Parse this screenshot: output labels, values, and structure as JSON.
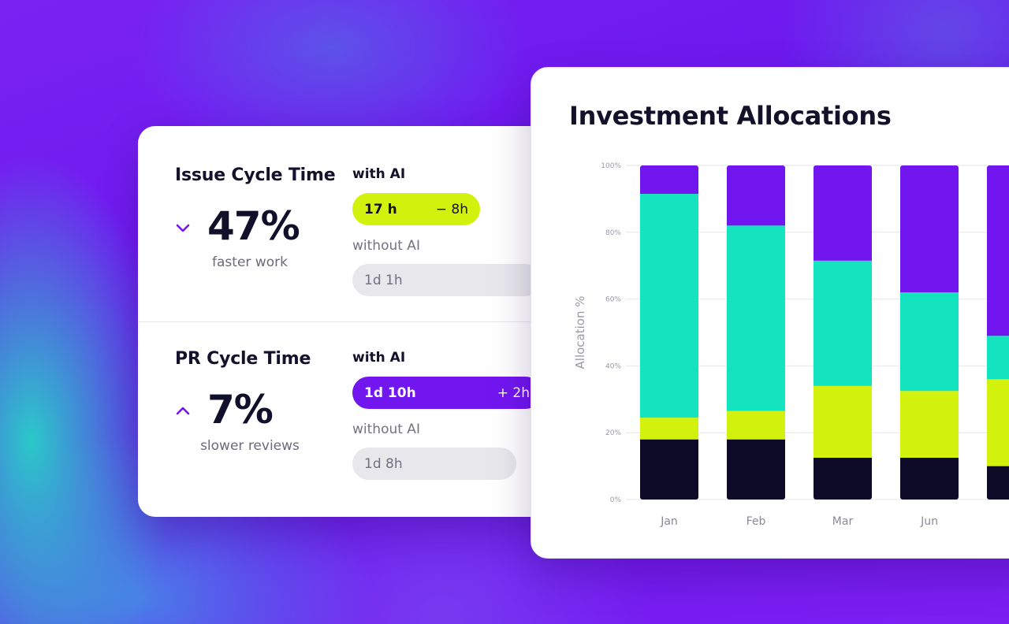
{
  "cycle_cards": [
    {
      "title": "Issue Cycle Time",
      "direction": "down",
      "percent": "47%",
      "caption": "faster work",
      "with_label": "with AI",
      "with_value": "17 h",
      "with_delta": "− 8h",
      "without_label": "without AI",
      "without_value": "1d 1h"
    },
    {
      "title": "PR Cycle Time",
      "direction": "up",
      "percent": "7%",
      "caption": "slower reviews",
      "with_label": "with AI",
      "with_value": "1d 10h",
      "with_delta": "+ 2h",
      "without_label": "without AI",
      "without_value": "1d 8h"
    }
  ],
  "colors": {
    "purple": "#7216f0",
    "teal": "#14e3c0",
    "lime": "#d2f20e",
    "navy": "#0e0b28",
    "arrow": "#7216f0"
  },
  "chart_data": {
    "type": "bar",
    "stacked": true,
    "title": "Investment Allocations",
    "xlabel": "",
    "ylabel": "Allocation %",
    "ylim": [
      0,
      100
    ],
    "y_ticks": [
      "0%",
      "20%",
      "40%",
      "60%",
      "80%",
      "100%"
    ],
    "grid": true,
    "categories": [
      "Jan",
      "Feb",
      "Mar",
      "Jun",
      ""
    ],
    "series": [
      {
        "color": "#0e0b28",
        "values": [
          18,
          18,
          12.5,
          12.5,
          10
        ]
      },
      {
        "color": "#d2f20e",
        "values": [
          6.5,
          8.5,
          21.5,
          20,
          26
        ]
      },
      {
        "color": "#14e3c0",
        "values": [
          67,
          55.5,
          37.5,
          29.5,
          13
        ]
      },
      {
        "color": "#7216f0",
        "values": [
          8.5,
          18,
          28.5,
          38,
          51
        ]
      }
    ]
  }
}
